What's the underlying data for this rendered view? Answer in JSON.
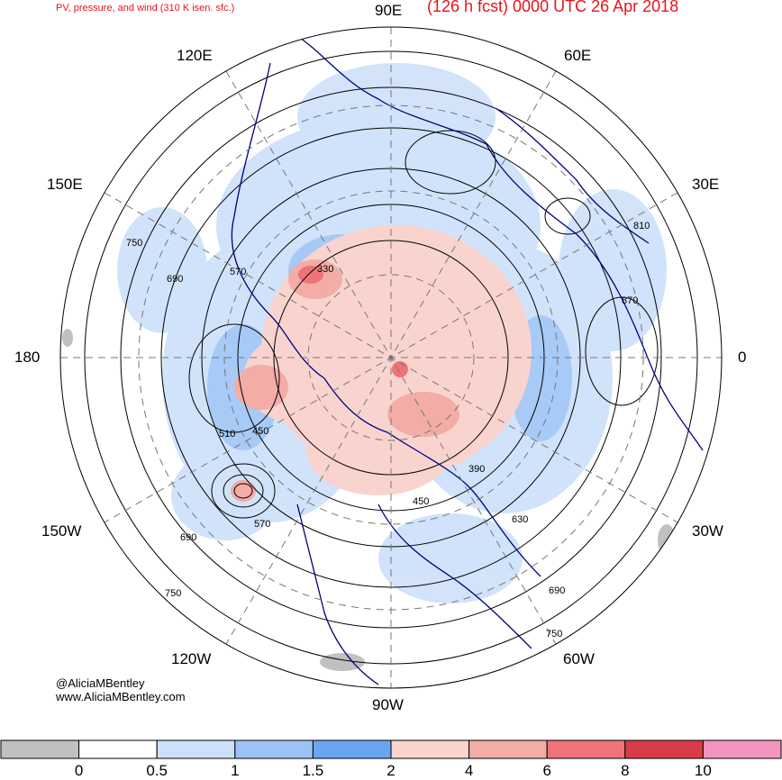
{
  "title": {
    "left": "PV, pressure, and wind (310 K isen. sfc.)",
    "right": "(126 h fcst) 0000 UTC 26 Apr 2018"
  },
  "longitude_labels": {
    "e90": "90E",
    "e120": "120E",
    "e60": "60E",
    "e150": "150E",
    "e30": "30E",
    "d180": "180",
    "d0": "0",
    "w150": "150W",
    "w30": "30W",
    "w120": "120W",
    "w60": "60W",
    "w90": "90W"
  },
  "contour_labels": [
    "750",
    "690",
    "570",
    "510",
    "450",
    "330",
    "630",
    "810",
    "870",
    "390"
  ],
  "credit": {
    "handle": "@AliciaMBentley",
    "website": "www.AliciaMBentley.com"
  },
  "colorbar": {
    "bins": [
      {
        "color": "#c0c0c0"
      },
      {
        "color": "#ffffff"
      },
      {
        "color": "#cde0fa"
      },
      {
        "color": "#9cc3f5"
      },
      {
        "color": "#6aa6ef"
      },
      {
        "color": "#f9d4cf"
      },
      {
        "color": "#f3aca6"
      },
      {
        "color": "#ee7479"
      },
      {
        "color": "#d93c49"
      },
      {
        "color": "#f394bf"
      }
    ],
    "labels": [
      "0",
      "0.5",
      "1",
      "1.5",
      "2",
      "4",
      "6",
      "8",
      "10"
    ]
  },
  "colors": {
    "title": "#e8141b",
    "coastline": "#000080",
    "contour": "#000000"
  }
}
